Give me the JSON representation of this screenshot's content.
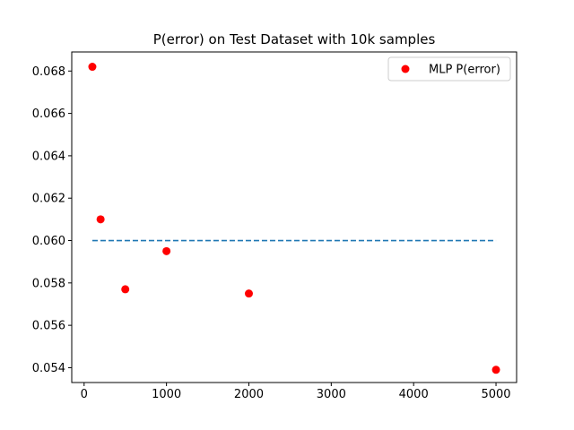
{
  "chart_data": {
    "type": "scatter",
    "title": "P(error) on Test Dataset with 10k samples",
    "xlabel": "",
    "ylabel": "",
    "xlim": [
      -150,
      5250
    ],
    "ylim": [
      0.0533,
      0.0689
    ],
    "xticks": [
      0,
      1000,
      2000,
      3000,
      4000,
      5000
    ],
    "xtick_labels": [
      "0",
      "1000",
      "2000",
      "3000",
      "4000",
      "5000"
    ],
    "yticks": [
      0.054,
      0.056,
      0.058,
      0.06,
      0.062,
      0.064,
      0.066,
      0.068
    ],
    "ytick_labels": [
      "0.054",
      "0.056",
      "0.058",
      "0.060",
      "0.062",
      "0.064",
      "0.066",
      "0.068"
    ],
    "grid": false,
    "legend_position": "top-right",
    "series": [
      {
        "name": "MLP P(error)",
        "kind": "scatter",
        "color": "#ff0000",
        "x": [
          100,
          200,
          500,
          1000,
          2000,
          5000
        ],
        "y": [
          0.0682,
          0.061,
          0.0577,
          0.0595,
          0.0575,
          0.0539
        ]
      },
      {
        "kind": "dashed-line",
        "color": "#1f77b4",
        "x": [
          100,
          5000
        ],
        "y": [
          0.06,
          0.06
        ]
      }
    ]
  }
}
